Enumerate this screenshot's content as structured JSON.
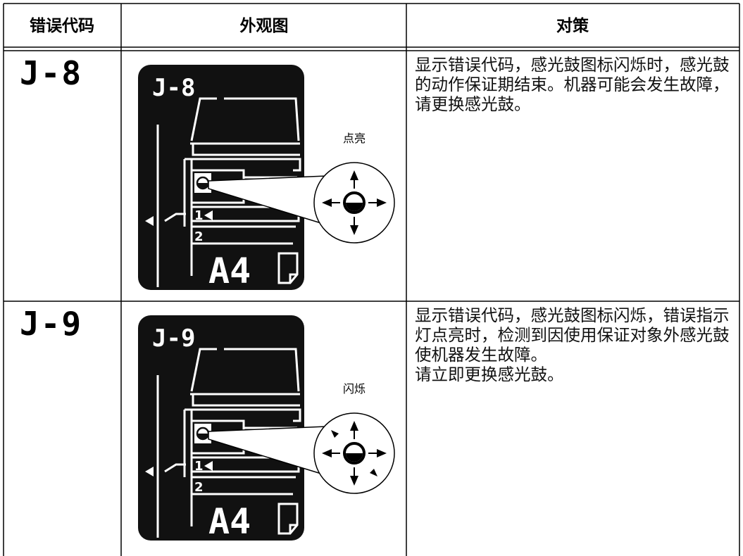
{
  "header": {
    "columns": [
      "错误代码",
      "外观图",
      "对策"
    ]
  },
  "rows": [
    {
      "code": "J-8",
      "panel": {
        "code": "J-8",
        "tray_1": "1",
        "tray_2": "2",
        "paper_size": "A4"
      },
      "callout": "点亮",
      "description": [
        "显示错误代码，感光鼓图标闪烁时，感光鼓的动作保证期结束。机器可能会发生故障，请更换感光鼓。"
      ]
    },
    {
      "code": "J-9",
      "panel": {
        "code": "J-9",
        "tray_1": "1",
        "tray_2": "2",
        "paper_size": "A4"
      },
      "callout": "闪烁",
      "description": [
        "显示错误代码，感光鼓图标闪烁，错误指示灯点亮时，检测到因使用保证对象外感光鼓使机器发生故障。",
        "请立即更换感光鼓。"
      ]
    }
  ]
}
